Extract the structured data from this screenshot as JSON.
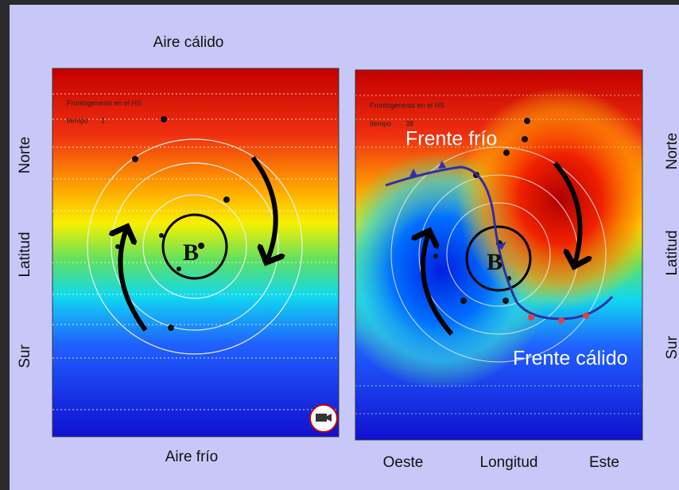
{
  "left_panel": {
    "top_label": "Aire cálido",
    "bottom_label": "Aire frío",
    "axis_labels": [
      "Norte",
      "Latitud",
      "Sur"
    ],
    "caption": "Frontogenesis en el HS",
    "time_label": "tiempo",
    "time_value": "1",
    "center_label": "B"
  },
  "right_panel": {
    "caption": "Frontogenesis en el HS",
    "time_label": "tiempo",
    "time_value": "38",
    "center_label": "B",
    "cold_front_label": "Frente frío",
    "warm_front_label": "Frente cálido",
    "x_axis_labels": [
      "Oeste",
      "Longitud",
      "Este"
    ],
    "axis_labels": [
      "Norte",
      "Latitud",
      "Sur"
    ]
  }
}
